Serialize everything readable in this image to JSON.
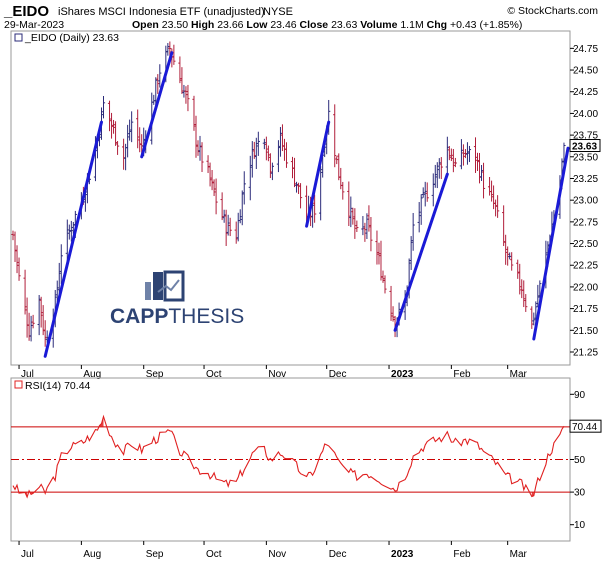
{
  "header": {
    "symbol": "_EIDO",
    "description": "iShares MSCI Indonesia ETF (unadjusted)",
    "exchange": "NYSE",
    "date": "29-Mar-2023",
    "open_label": "Open",
    "open": "23.50",
    "high_label": "High",
    "high": "23.66",
    "low_label": "Low",
    "low": "23.46",
    "close_label": "Close",
    "close": "23.63",
    "volume_label": "Volume",
    "volume": "1.1M",
    "chg_label": "Chg",
    "chg": "+0.43 (+1.85%)",
    "credit": "© StockCharts.com"
  },
  "price_panel": {
    "legend": "_EIDO (Daily) 23.63",
    "last_value_label": "23.63"
  },
  "rsi_panel": {
    "legend": "RSI(14) 70.44",
    "last_value_label": "70.44"
  },
  "watermark": {
    "text_bold": "CAPP",
    "text_light": "THESIS"
  },
  "colors": {
    "up_bar": "#2b2b7a",
    "down_bar": "#b01e3a",
    "trend_line": "#1a1ad6",
    "rsi_line": "#e02020",
    "rsi_fill": "#e02020",
    "band_line": "#cc0000",
    "watermark": "#2d4373"
  },
  "chart_data": [
    {
      "type": "ohlc",
      "title": "_EIDO (Daily) 23.63",
      "x_tick_labels": [
        "Jul",
        "Aug",
        "Sep",
        "Oct",
        "Nov",
        "Dec",
        "2023",
        "Feb",
        "Mar"
      ],
      "y_tick_labels": [
        "21.25",
        "21.50",
        "21.75",
        "22.00",
        "22.25",
        "22.50",
        "22.75",
        "23.00",
        "23.25",
        "23.50",
        "23.75",
        "24.00",
        "24.25",
        "24.50",
        "24.75"
      ],
      "ylim": [
        21.1,
        24.95
      ],
      "grid": false,
      "anchors_date_close": [
        [
          "2022-06-28",
          22.6
        ],
        [
          "2022-07-01",
          22.1
        ],
        [
          "2022-07-06",
          21.5
        ],
        [
          "2022-07-11",
          21.85
        ],
        [
          "2022-07-14",
          21.4
        ],
        [
          "2022-07-19",
          21.8
        ],
        [
          "2022-07-22",
          22.4
        ],
        [
          "2022-07-27",
          22.7
        ],
        [
          "2022-08-01",
          23.0
        ],
        [
          "2022-08-05",
          23.3
        ],
        [
          "2022-08-09",
          23.7
        ],
        [
          "2022-08-12",
          24.1
        ],
        [
          "2022-08-17",
          23.8
        ],
        [
          "2022-08-22",
          23.5
        ],
        [
          "2022-08-26",
          23.9
        ],
        [
          "2022-08-31",
          23.6
        ],
        [
          "2022-09-06",
          24.2
        ],
        [
          "2022-09-09",
          24.5
        ],
        [
          "2022-09-14",
          24.75
        ],
        [
          "2022-09-19",
          24.4
        ],
        [
          "2022-09-23",
          24.1
        ],
        [
          "2022-09-28",
          23.6
        ],
        [
          "2022-10-03",
          23.3
        ],
        [
          "2022-10-07",
          23.0
        ],
        [
          "2022-10-12",
          22.7
        ],
        [
          "2022-10-17",
          22.6
        ],
        [
          "2022-10-21",
          23.2
        ],
        [
          "2022-10-26",
          23.6
        ],
        [
          "2022-10-31",
          23.75
        ],
        [
          "2022-11-03",
          23.4
        ],
        [
          "2022-11-08",
          23.7
        ],
        [
          "2022-11-11",
          23.5
        ],
        [
          "2022-11-16",
          23.2
        ],
        [
          "2022-11-21",
          22.8
        ],
        [
          "2022-11-25",
          22.9
        ],
        [
          "2022-11-30",
          23.7
        ],
        [
          "2022-12-02",
          24.0
        ],
        [
          "2022-12-07",
          23.3
        ],
        [
          "2022-12-12",
          22.9
        ],
        [
          "2022-12-16",
          22.6
        ],
        [
          "2022-12-21",
          22.7
        ],
        [
          "2022-12-27",
          22.3
        ],
        [
          "2022-12-30",
          22.0
        ],
        [
          "2023-01-04",
          21.6
        ],
        [
          "2023-01-09",
          21.8
        ],
        [
          "2023-01-13",
          22.7
        ],
        [
          "2023-01-18",
          23.0
        ],
        [
          "2023-01-24",
          23.3
        ],
        [
          "2023-01-30",
          23.6
        ],
        [
          "2023-02-03",
          23.4
        ],
        [
          "2023-02-08",
          23.55
        ],
        [
          "2023-02-13",
          23.5
        ],
        [
          "2023-02-17",
          23.2
        ],
        [
          "2023-02-23",
          22.9
        ],
        [
          "2023-02-28",
          22.4
        ],
        [
          "2023-03-03",
          22.2
        ],
        [
          "2023-03-08",
          22.0
        ],
        [
          "2023-03-13",
          21.55
        ],
        [
          "2023-03-17",
          22.0
        ],
        [
          "2023-03-22",
          22.6
        ],
        [
          "2023-03-27",
          23.2
        ],
        [
          "2023-03-29",
          23.63
        ]
      ],
      "last_close": 23.63,
      "trend_lines": [
        {
          "from": [
            "2022-07-14",
            21.2
          ],
          "to": [
            "2022-08-11",
            23.9
          ]
        },
        {
          "from": [
            "2022-08-31",
            23.5
          ],
          "to": [
            "2022-09-15",
            24.7
          ]
        },
        {
          "from": [
            "2022-11-21",
            22.7
          ],
          "to": [
            "2022-12-02",
            23.9
          ]
        },
        {
          "from": [
            "2023-01-04",
            21.5
          ],
          "to": [
            "2023-01-30",
            23.3
          ]
        },
        {
          "from": [
            "2023-03-14",
            21.4
          ],
          "to": [
            "2023-03-31",
            23.6
          ]
        }
      ]
    },
    {
      "type": "line",
      "title": "RSI(14) 70.44",
      "x_tick_labels": [
        "Jul",
        "Aug",
        "Sep",
        "Oct",
        "Nov",
        "Dec",
        "2023",
        "Feb",
        "Mar"
      ],
      "y_tick_labels": [
        "10",
        "30",
        "50",
        "70",
        "90"
      ],
      "ylim": [
        0,
        100
      ],
      "reference_lines": [
        70,
        50,
        30
      ],
      "anchors_date_value": [
        [
          "2022-06-28",
          35
        ],
        [
          "2022-07-01",
          30
        ],
        [
          "2022-07-06",
          28
        ],
        [
          "2022-07-11",
          33
        ],
        [
          "2022-07-14",
          30
        ],
        [
          "2022-07-19",
          40
        ],
        [
          "2022-07-22",
          52
        ],
        [
          "2022-07-27",
          58
        ],
        [
          "2022-08-01",
          60
        ],
        [
          "2022-08-05",
          64
        ],
        [
          "2022-08-09",
          68
        ],
        [
          "2022-08-12",
          76
        ],
        [
          "2022-08-17",
          62
        ],
        [
          "2022-08-22",
          55
        ],
        [
          "2022-08-26",
          60
        ],
        [
          "2022-08-31",
          56
        ],
        [
          "2022-09-06",
          62
        ],
        [
          "2022-09-09",
          64
        ],
        [
          "2022-09-14",
          67
        ],
        [
          "2022-09-19",
          55
        ],
        [
          "2022-09-23",
          50
        ],
        [
          "2022-09-28",
          44
        ],
        [
          "2022-10-03",
          42
        ],
        [
          "2022-10-07",
          38
        ],
        [
          "2022-10-12",
          35
        ],
        [
          "2022-10-17",
          36
        ],
        [
          "2022-10-21",
          45
        ],
        [
          "2022-10-26",
          55
        ],
        [
          "2022-10-31",
          56
        ],
        [
          "2022-11-03",
          50
        ],
        [
          "2022-11-08",
          54
        ],
        [
          "2022-11-11",
          52
        ],
        [
          "2022-11-16",
          46
        ],
        [
          "2022-11-21",
          38
        ],
        [
          "2022-11-25",
          44
        ],
        [
          "2022-11-30",
          58
        ],
        [
          "2022-12-02",
          60
        ],
        [
          "2022-12-07",
          48
        ],
        [
          "2022-12-12",
          42
        ],
        [
          "2022-12-16",
          40
        ],
        [
          "2022-12-21",
          42
        ],
        [
          "2022-12-27",
          38
        ],
        [
          "2022-12-30",
          36
        ],
        [
          "2023-01-04",
          32
        ],
        [
          "2023-01-09",
          40
        ],
        [
          "2023-01-13",
          52
        ],
        [
          "2023-01-18",
          58
        ],
        [
          "2023-01-24",
          62
        ],
        [
          "2023-01-30",
          65
        ],
        [
          "2023-02-03",
          60
        ],
        [
          "2023-02-08",
          62
        ],
        [
          "2023-02-13",
          60
        ],
        [
          "2023-02-17",
          55
        ],
        [
          "2023-02-23",
          48
        ],
        [
          "2023-02-28",
          40
        ],
        [
          "2023-03-03",
          38
        ],
        [
          "2023-03-08",
          35
        ],
        [
          "2023-03-13",
          26
        ],
        [
          "2023-03-17",
          40
        ],
        [
          "2023-03-22",
          55
        ],
        [
          "2023-03-27",
          64
        ],
        [
          "2023-03-29",
          70.44
        ]
      ],
      "last_value": 70.44
    }
  ]
}
